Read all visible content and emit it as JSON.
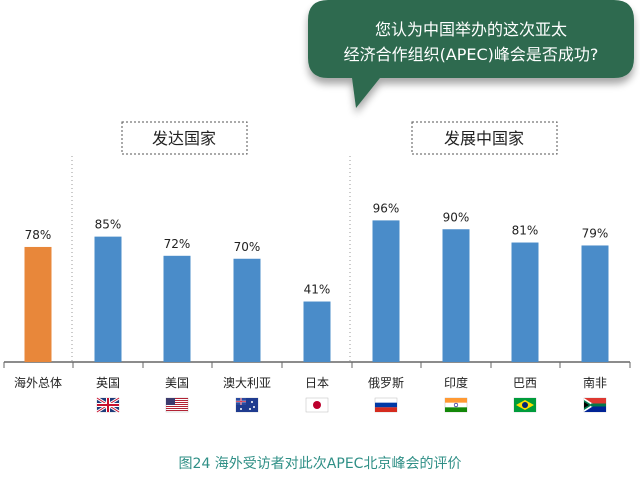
{
  "question": {
    "line1": "您认为中国举办的这次亚太",
    "line2": "经济合作组织(APEC)峰会是否成功?"
  },
  "groups": {
    "developed": "发达国家",
    "developing": "发展中国家"
  },
  "caption": "图24   海外受访者对此次APEC北京峰会的评价",
  "colors": {
    "overall_bar": "#e8873a",
    "country_bar": "#4a8cc9",
    "bubble": "#2e6b4f",
    "caption": "#2f8f86"
  },
  "chart_data": {
    "type": "bar",
    "title": "",
    "xlabel": "",
    "ylabel": "",
    "ylim": [
      0,
      100
    ],
    "grid": false,
    "categories": [
      "海外总体",
      "英国",
      "美国",
      "澳大利亚",
      "日本",
      "俄罗斯",
      "印度",
      "巴西",
      "南非"
    ],
    "values": [
      78,
      85,
      72,
      70,
      41,
      96,
      90,
      81,
      79
    ],
    "value_labels": [
      "78%",
      "85%",
      "72%",
      "70%",
      "41%",
      "96%",
      "90%",
      "81%",
      "79%"
    ],
    "flags": [
      "",
      "uk-flag-icon",
      "us-flag-icon",
      "australia-flag-icon",
      "japan-flag-icon",
      "russia-flag-icon",
      "india-flag-icon",
      "brazil-flag-icon",
      "south-africa-flag-icon"
    ]
  }
}
